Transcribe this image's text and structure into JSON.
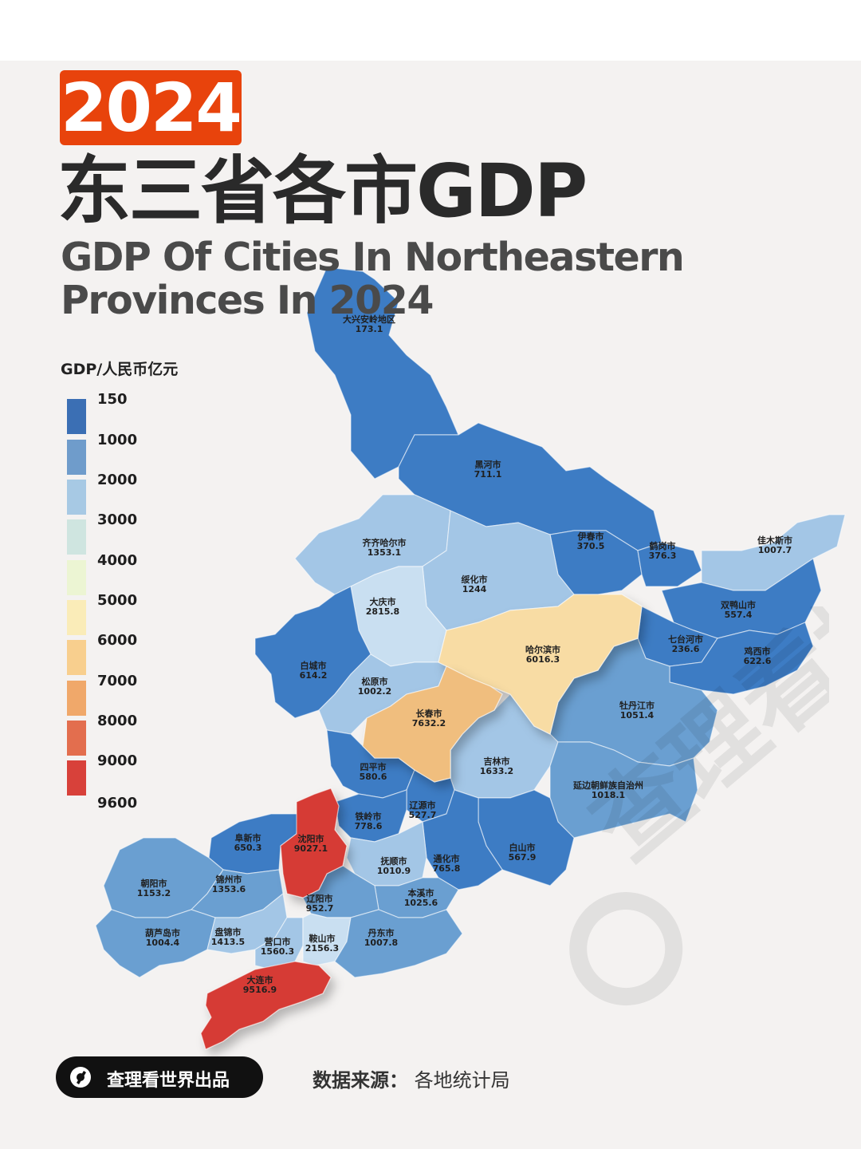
{
  "header": {
    "year": "2024",
    "title_cn": "东三省各市GDP",
    "title_en_line1": "GDP Of Cities In Northeastern",
    "title_en_line2": "Provinces In 2024"
  },
  "legend": {
    "title": "GDP/人民币亿元",
    "items": [
      {
        "label": "150",
        "color": "#3b6fb4"
      },
      {
        "label": "1000",
        "color": "#6f9ccb"
      },
      {
        "label": "2000",
        "color": "#a7c9e4"
      },
      {
        "label": "3000",
        "color": "#cfe5e0"
      },
      {
        "label": "4000",
        "color": "#ecf5d3"
      },
      {
        "label": "5000",
        "color": "#faecb8"
      },
      {
        "label": "6000",
        "color": "#f8cf8e"
      },
      {
        "label": "7000",
        "color": "#f0a86a"
      },
      {
        "label": "8000",
        "color": "#e36e4e"
      },
      {
        "label": "9000",
        "color": "#d8413a"
      },
      {
        "label": "9600",
        "color": ""
      }
    ]
  },
  "map": {
    "colors": {
      "deep_blue": "#3d7cc4",
      "mid_blue": "#6a9fd1",
      "light_blue": "#a3c6e6",
      "pale_blue": "#c9dff1",
      "beige": "#f8dca4",
      "orange": "#f0be7e",
      "red": "#d63a34",
      "outer_bg": "#4a88c9"
    },
    "cities": [
      {
        "name": "大兴安岭地区",
        "value": "173.1"
      },
      {
        "name": "黑河市",
        "value": "711.1"
      },
      {
        "name": "齐齐哈尔市",
        "value": "1353.1"
      },
      {
        "name": "伊春市",
        "value": "370.5"
      },
      {
        "name": "鹤岗市",
        "value": "376.3"
      },
      {
        "name": "佳木斯市",
        "value": "1007.7"
      },
      {
        "name": "绥化市",
        "value": "1244"
      },
      {
        "name": "大庆市",
        "value": "2815.8"
      },
      {
        "name": "双鸭山市",
        "value": "557.4"
      },
      {
        "name": "哈尔滨市",
        "value": "6016.3"
      },
      {
        "name": "七台河市",
        "value": "236.6"
      },
      {
        "name": "鸡西市",
        "value": "622.6"
      },
      {
        "name": "白城市",
        "value": "614.2"
      },
      {
        "name": "松原市",
        "value": "1002.2"
      },
      {
        "name": "牡丹江市",
        "value": "1051.4"
      },
      {
        "name": "长春市",
        "value": "7632.2"
      },
      {
        "name": "吉林市",
        "value": "1633.2"
      },
      {
        "name": "四平市",
        "value": "580.6"
      },
      {
        "name": "延边朝鲜族自治州",
        "value": "1018.1"
      },
      {
        "name": "辽源市",
        "value": "527.7"
      },
      {
        "name": "铁岭市",
        "value": "778.6"
      },
      {
        "name": "阜新市",
        "value": "650.3"
      },
      {
        "name": "沈阳市",
        "value": "9027.1"
      },
      {
        "name": "白山市",
        "value": "567.9"
      },
      {
        "name": "通化市",
        "value": "765.8"
      },
      {
        "name": "抚顺市",
        "value": "1010.9"
      },
      {
        "name": "朝阳市",
        "value": "1153.2"
      },
      {
        "name": "锦州市",
        "value": "1353.6"
      },
      {
        "name": "本溪市",
        "value": "1025.6"
      },
      {
        "name": "辽阳市",
        "value": "952.7"
      },
      {
        "name": "葫芦岛市",
        "value": "1004.4"
      },
      {
        "name": "盘锦市",
        "value": "1413.5"
      },
      {
        "name": "营口市",
        "value": "1560.3"
      },
      {
        "name": "鞍山市",
        "value": "2156.3"
      },
      {
        "name": "丹东市",
        "value": "1007.8"
      },
      {
        "name": "大连市",
        "value": "9516.9"
      }
    ]
  },
  "footer": {
    "brand": "查理看世界出品",
    "source_label": "数据来源：",
    "source_value": "各地统计局"
  }
}
